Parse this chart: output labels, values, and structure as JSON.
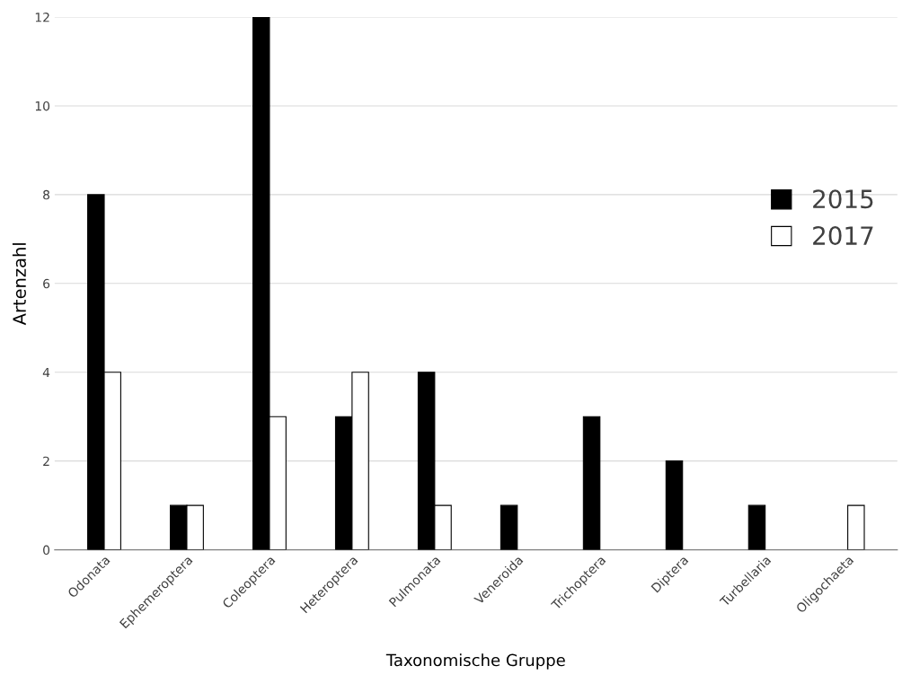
{
  "chart_data": {
    "type": "bar",
    "xlabel": "Taxonomische Gruppe",
    "ylabel": "Artenzahl",
    "categories": [
      "Odonata",
      "Ephemeroptera",
      "Coleoptera",
      "Heteroptera",
      "Pulmonata",
      "Veneroida",
      "Trichoptera",
      "Diptera",
      "Turbellaria",
      "Oligochaeta"
    ],
    "series": [
      {
        "name": "2015",
        "color": "#000000",
        "values": [
          8,
          1,
          12,
          3,
          4,
          1,
          3,
          2,
          1,
          null
        ]
      },
      {
        "name": "2017",
        "color": "#ffffff",
        "values": [
          4,
          1,
          3,
          4,
          1,
          null,
          null,
          null,
          null,
          1
        ]
      }
    ],
    "ylim": [
      0,
      12
    ],
    "yticks": [
      0,
      2,
      4,
      6,
      8,
      10,
      12
    ],
    "grid": "y",
    "legend": "right"
  }
}
